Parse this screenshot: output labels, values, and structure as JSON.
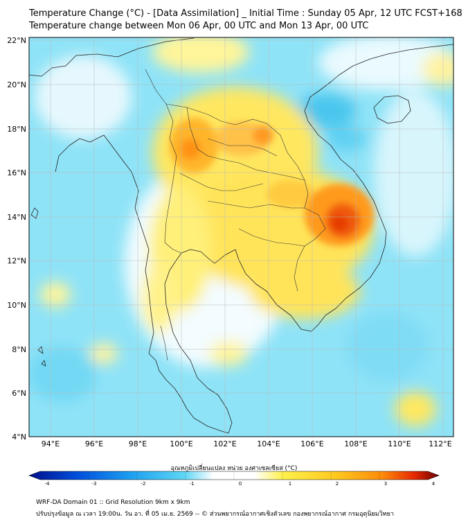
{
  "header": {
    "title_line1": "Temperature Change (°C) - [Data Assimilation] _ Initial Time : Sunday 05 Apr, 12 UTC FCST+168",
    "title_line2": "Temperature change between Mon 06 Apr, 00 UTC and Mon 13 Apr, 00 UTC"
  },
  "map": {
    "lat_labels": [
      "22°N",
      "20°N",
      "18°N",
      "16°N",
      "14°N",
      "12°N",
      "10°N",
      "8°N",
      "6°N",
      "4°N"
    ],
    "lon_labels": [
      "94°E",
      "96°E",
      "98°E",
      "100°E",
      "102°E",
      "104°E",
      "106°E",
      "108°E",
      "110°E",
      "112°E"
    ],
    "lat_range": [
      4,
      22.3
    ],
    "lon_range": [
      93,
      112.5
    ],
    "grid": true
  },
  "colorbar": {
    "label": "อุณหภูมิเปลี่ยนแปลง หน่วย องศาเซลเซียส (°C)",
    "tick_labels": [
      "-4",
      "-3",
      "-2",
      "-1",
      "0",
      "1",
      "2",
      "3",
      "4"
    ],
    "range": [
      -4,
      4
    ],
    "colors": [
      "#000f8c",
      "#0050dc",
      "#1ea0f0",
      "#5fd7f5",
      "#ffffff",
      "#ffffff",
      "#fff14b",
      "#ffc81e",
      "#ff8c0a",
      "#e62800",
      "#6e0000"
    ]
  },
  "footer": {
    "line1": "WRF-DA Domain 01 :: Grid Resolution 9km x 9km",
    "line2": "ปรับปรุงข้อมูล ณ เวลา 19:00น. วัน อา. ที่ 05 เม.ย. 2569 -- © ส่วนพยากรณ์อากาศเชิงตัวเลข กองพยากรณ์อากาศ กรมอุตุนิยมวิทยา"
  }
}
